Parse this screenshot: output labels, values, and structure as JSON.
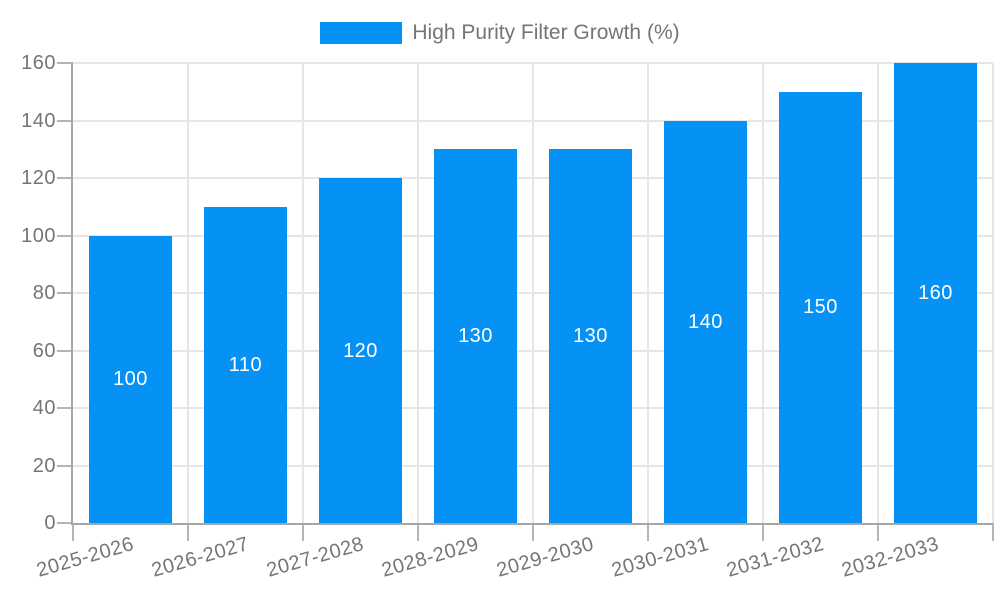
{
  "legend": {
    "label": "High Purity Filter Growth (%)"
  },
  "colors": {
    "bar": "#0691f5",
    "bar_label": "#ffffff",
    "axis": "#a6a6a6",
    "tick": "#b5b5b5",
    "grid": "#e6e6e6",
    "text": "#757575",
    "background": "#ffffff"
  },
  "chart_data": {
    "type": "bar",
    "title": "High Purity Filter Growth (%)",
    "series_name": "High Purity Filter Growth (%)",
    "categories": [
      "2025-2026",
      "2026-2027",
      "2027-2028",
      "2028-2029",
      "2029-2030",
      "2030-2031",
      "2031-2032",
      "2032-2033"
    ],
    "values": [
      100,
      110,
      120,
      130,
      130,
      140,
      150,
      160
    ],
    "bar_value_labels": [
      "100",
      "110",
      "120",
      "130",
      "130",
      "140",
      "150",
      "160"
    ],
    "xlabel": "",
    "ylabel": "",
    "ylim": [
      0,
      160
    ],
    "ytick_step": 20,
    "yticks": [
      0,
      20,
      40,
      60,
      80,
      100,
      120,
      140,
      160
    ],
    "grid": true,
    "legend_position": "top-center",
    "bar_labels_visible": true,
    "bar_label_position": "center",
    "xtick_rotation_deg": -16
  }
}
